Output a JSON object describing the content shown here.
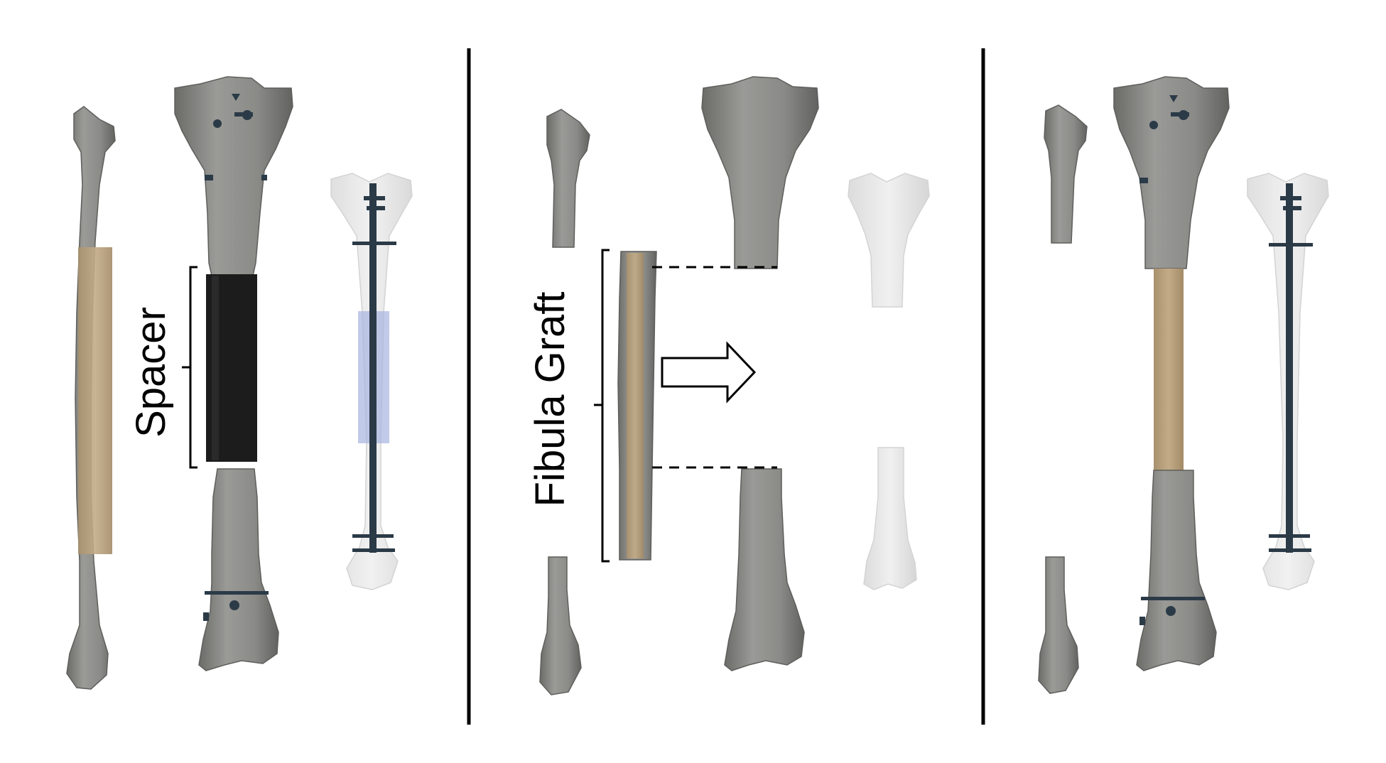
{
  "labels": {
    "spacer": "Spacer",
    "fibula_graft": "Fibula Graft"
  },
  "panels": [
    {
      "stage": "spacer-in-place"
    },
    {
      "stage": "fibula-graft-harvest"
    },
    {
      "stage": "graft-inserted"
    }
  ],
  "colors": {
    "bone": "#8e8e8b",
    "bone_dark": "#6f6f6c",
    "graft_overlay": "#b9a27f",
    "spacer": "#1c1c1c",
    "hardware": "#2b3a47",
    "spacer_xray": "#a8b4e0",
    "ghost_bone": "#e6e6e6",
    "divider": "#000000"
  },
  "icons": {
    "direction": "arrow-right-icon"
  }
}
